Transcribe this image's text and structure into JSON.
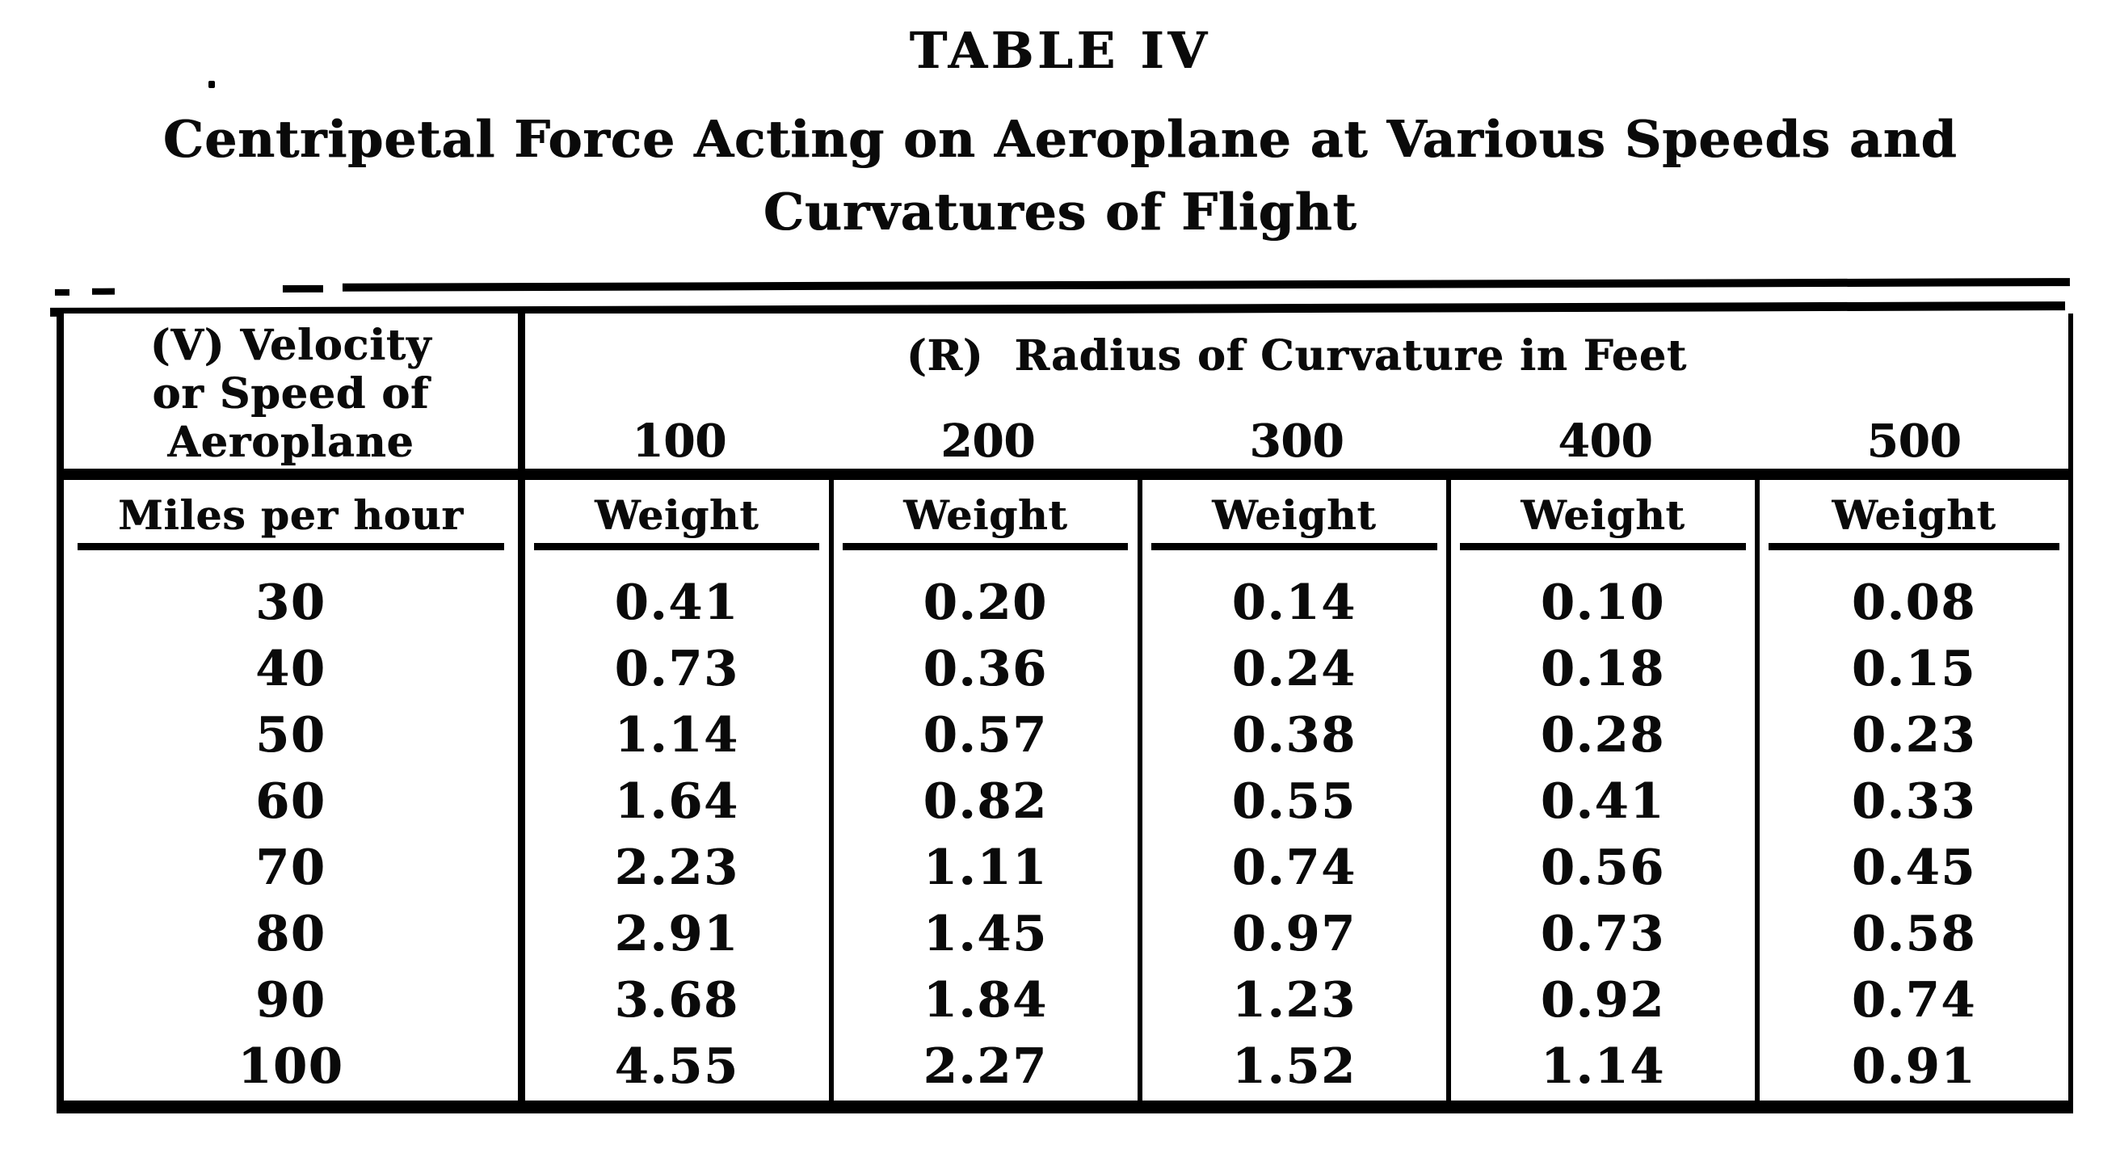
{
  "page": {
    "title": "TABLE IV",
    "subtitle_line1": "Centripetal Force Acting on Aeroplane at Various Speeds and",
    "subtitle_line2": "Curvatures of Flight"
  },
  "colors": {
    "ink": "#0a0a0a",
    "paper": "#ffffff"
  },
  "table": {
    "velocity_header": {
      "line1": "(V) Velocity",
      "line2": "or Speed of",
      "line3": "Aeroplane"
    },
    "radius_header": "(R)  Radius of Curvature in Feet",
    "radius_values": [
      "100",
      "200",
      "300",
      "400",
      "500"
    ],
    "speed_unit_label": "Miles per hour",
    "weight_label": "Weight",
    "rows": [
      {
        "speed": "30",
        "weights": [
          "0.41",
          "0.20",
          "0.14",
          "0.10",
          "0.08"
        ]
      },
      {
        "speed": "40",
        "weights": [
          "0.73",
          "0.36",
          "0.24",
          "0.18",
          "0.15"
        ]
      },
      {
        "speed": "50",
        "weights": [
          "1.14",
          "0.57",
          "0.38",
          "0.28",
          "0.23"
        ]
      },
      {
        "speed": "60",
        "weights": [
          "1.64",
          "0.82",
          "0.55",
          "0.41",
          "0.33"
        ]
      },
      {
        "speed": "70",
        "weights": [
          "2.23",
          "1.11",
          "0.74",
          "0.56",
          "0.45"
        ]
      },
      {
        "speed": "80",
        "weights": [
          "2.91",
          "1.45",
          "0.97",
          "0.73",
          "0.58"
        ]
      },
      {
        "speed": "90",
        "weights": [
          "3.68",
          "1.84",
          "1.23",
          "0.92",
          "0.74"
        ]
      },
      {
        "speed": "100",
        "weights": [
          "4.55",
          "2.27",
          "1.52",
          "1.14",
          "0.91"
        ]
      }
    ]
  }
}
